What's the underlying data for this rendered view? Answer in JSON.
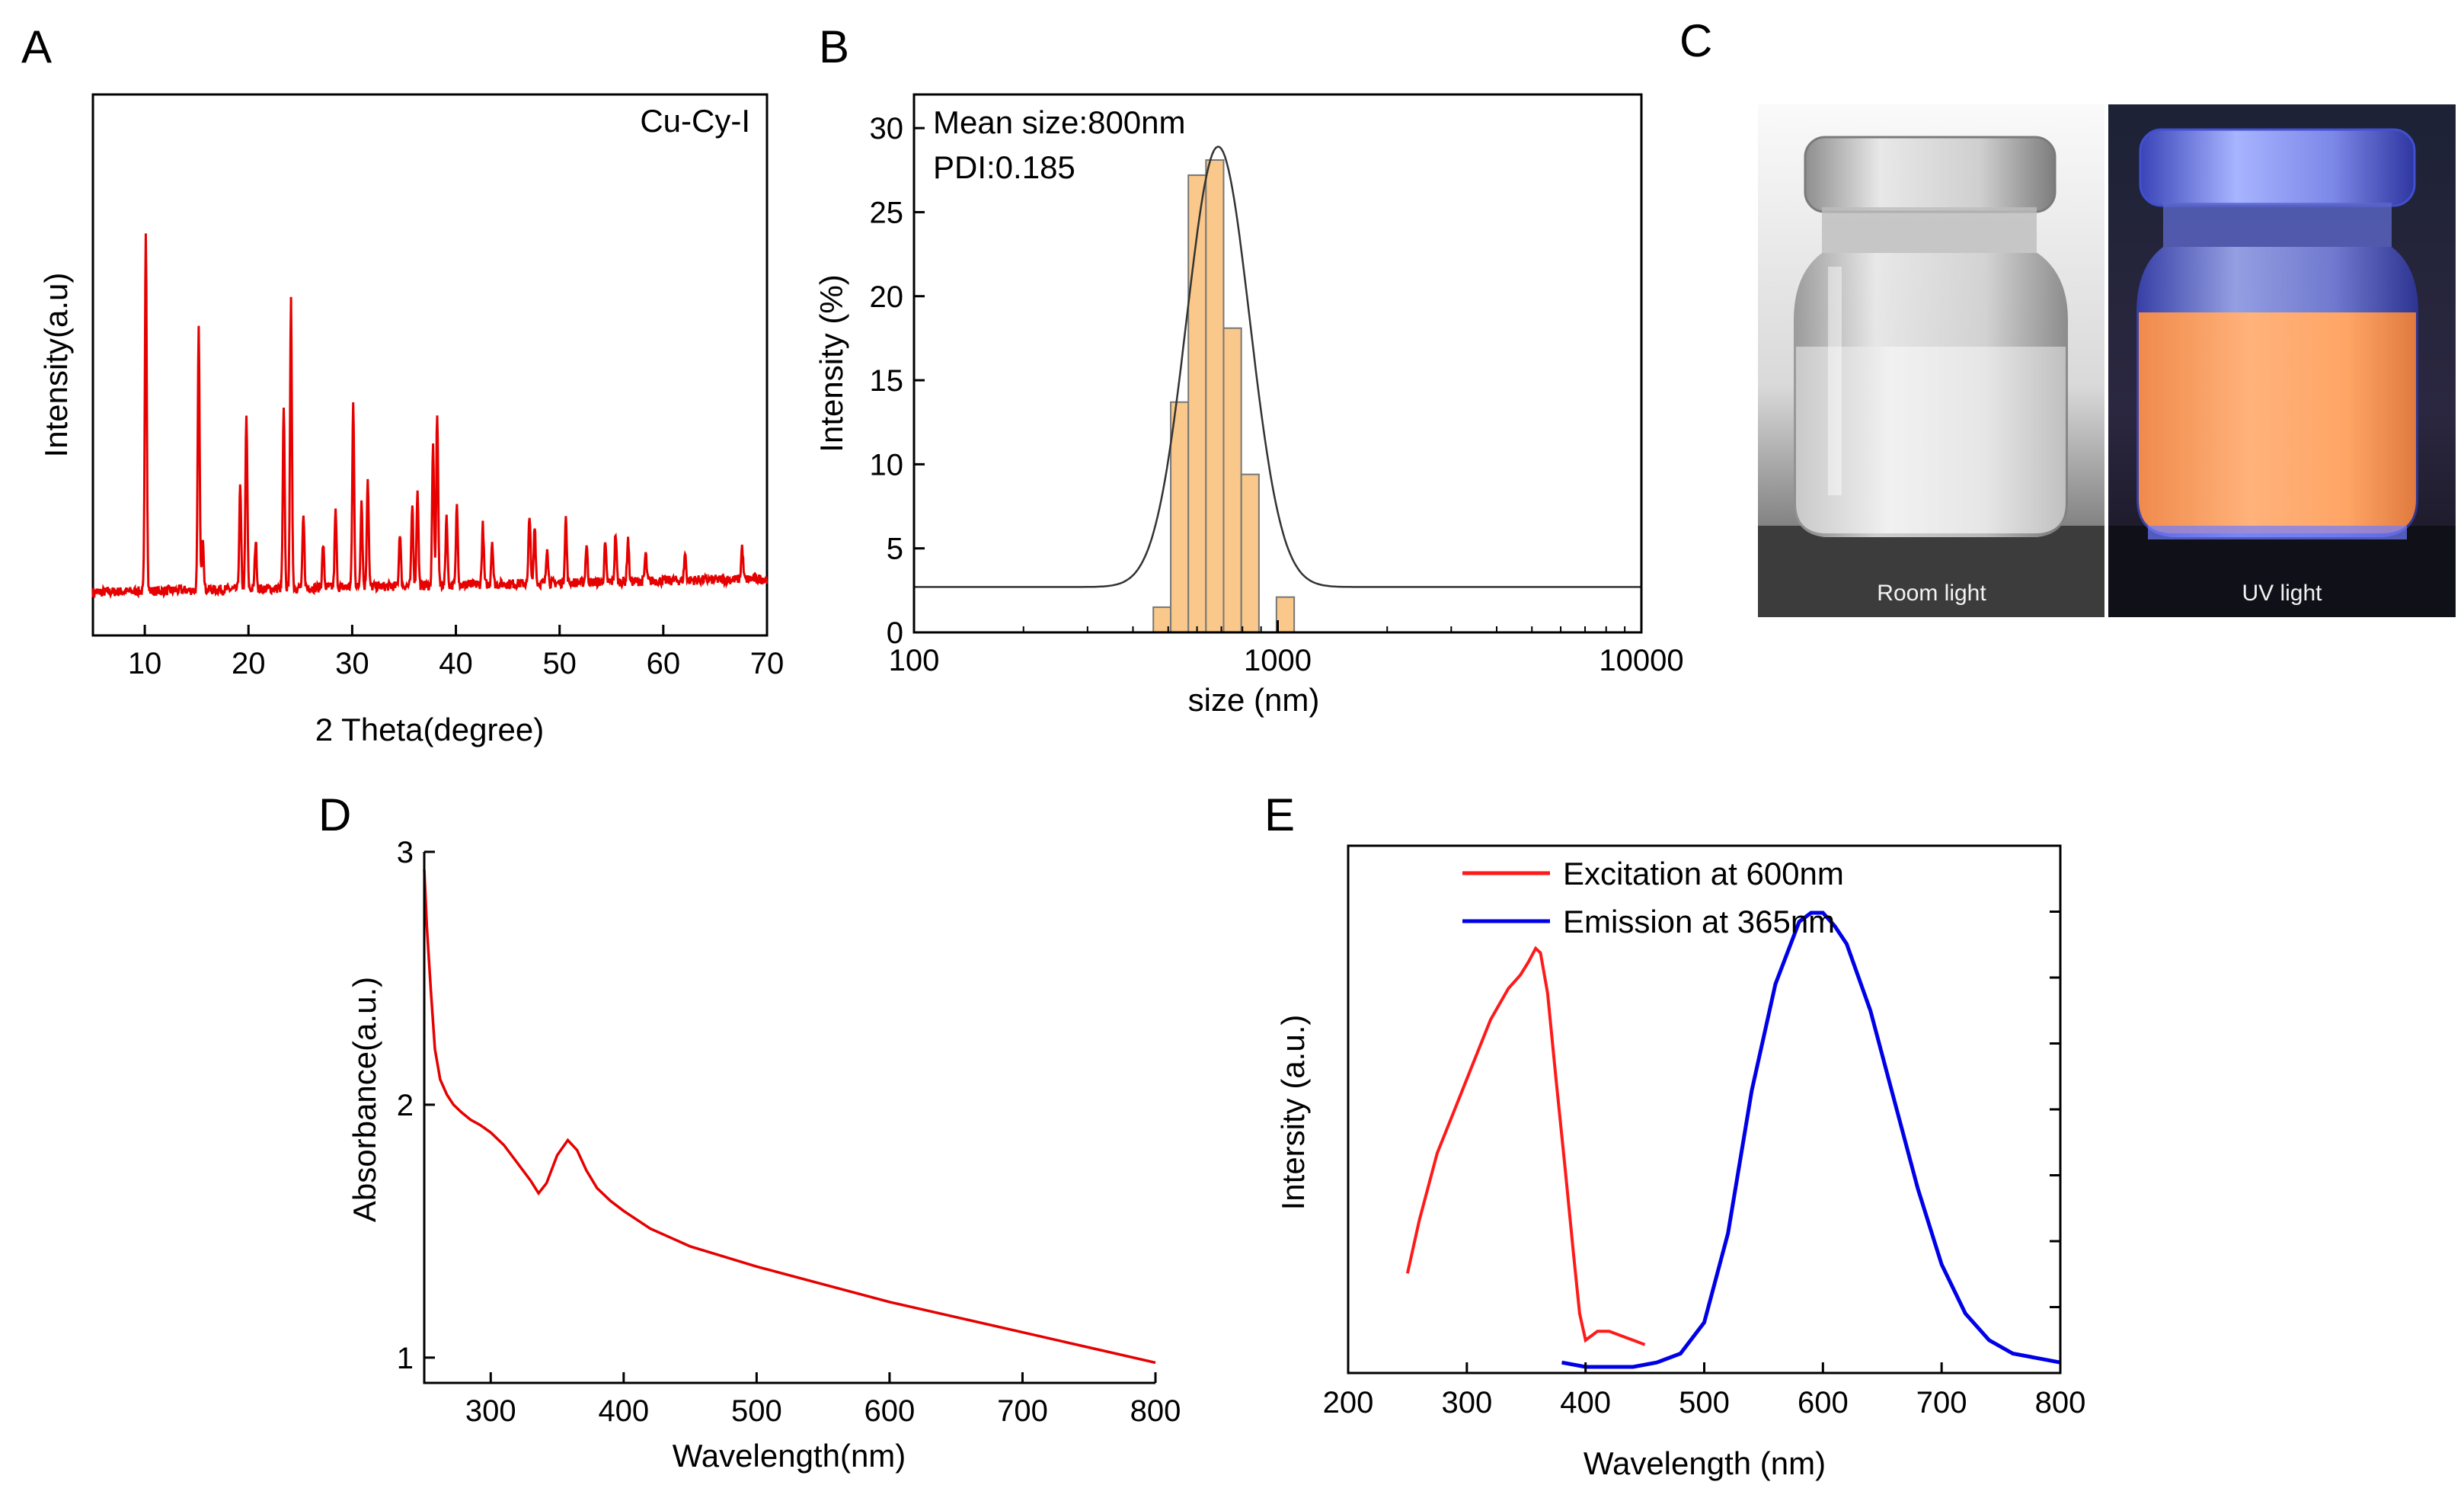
{
  "panel_letters": [
    "A",
    "B",
    "C",
    "D",
    "E"
  ],
  "chart_data": [
    {
      "panel": "A",
      "type": "line",
      "title": "",
      "annotation": "Cu-Cy-I",
      "xlabel": "2 Theta(degree)",
      "ylabel": "Intensity(a.u)",
      "xlim": [
        5,
        70
      ],
      "ylim": [
        0,
        1
      ],
      "x_ticks": [
        10,
        20,
        30,
        40,
        50,
        60,
        70
      ],
      "y_ticks_shown": false,
      "color": "#e60000",
      "baseline": 0.08,
      "peaks": [
        {
          "x": 10.1,
          "y": 0.75
        },
        {
          "x": 15.2,
          "y": 0.56
        },
        {
          "x": 15.6,
          "y": 0.18
        },
        {
          "x": 19.2,
          "y": 0.27
        },
        {
          "x": 19.8,
          "y": 0.4
        },
        {
          "x": 20.7,
          "y": 0.17
        },
        {
          "x": 23.4,
          "y": 0.41
        },
        {
          "x": 24.1,
          "y": 0.61
        },
        {
          "x": 25.3,
          "y": 0.21
        },
        {
          "x": 27.2,
          "y": 0.16
        },
        {
          "x": 28.4,
          "y": 0.22
        },
        {
          "x": 30.1,
          "y": 0.42
        },
        {
          "x": 30.9,
          "y": 0.24
        },
        {
          "x": 31.5,
          "y": 0.28
        },
        {
          "x": 34.6,
          "y": 0.18
        },
        {
          "x": 35.8,
          "y": 0.23
        },
        {
          "x": 36.3,
          "y": 0.26
        },
        {
          "x": 37.8,
          "y": 0.34
        },
        {
          "x": 38.2,
          "y": 0.4
        },
        {
          "x": 39.1,
          "y": 0.21
        },
        {
          "x": 40.1,
          "y": 0.23
        },
        {
          "x": 42.6,
          "y": 0.19
        },
        {
          "x": 43.5,
          "y": 0.16
        },
        {
          "x": 47.1,
          "y": 0.21
        },
        {
          "x": 47.6,
          "y": 0.19
        },
        {
          "x": 48.8,
          "y": 0.15
        },
        {
          "x": 50.6,
          "y": 0.2
        },
        {
          "x": 52.6,
          "y": 0.15
        },
        {
          "x": 54.4,
          "y": 0.15
        },
        {
          "x": 55.4,
          "y": 0.17
        },
        {
          "x": 56.6,
          "y": 0.16
        },
        {
          "x": 58.3,
          "y": 0.13
        },
        {
          "x": 62.1,
          "y": 0.13
        },
        {
          "x": 67.6,
          "y": 0.14
        }
      ]
    },
    {
      "panel": "B",
      "type": "bar",
      "title": "",
      "annotations": [
        "Mean size:800nm",
        "PDI:0.185"
      ],
      "xlabel": "size (nm)",
      "ylabel": "Intensity (%)",
      "xscale": "log",
      "xlim": [
        100,
        10000
      ],
      "ylim": [
        0,
        32
      ],
      "x_ticks": [
        100,
        1000,
        10000
      ],
      "y_ticks": [
        0,
        5,
        10,
        15,
        20,
        25,
        30
      ],
      "bar_color": "#f9c88a",
      "bar_edge": "#777777",
      "bins": [
        {
          "x0": 455,
          "x1": 508,
          "value": 1.5
        },
        {
          "x0": 508,
          "x1": 568,
          "value": 13.7
        },
        {
          "x0": 568,
          "x1": 635,
          "value": 27.2
        },
        {
          "x0": 635,
          "x1": 710,
          "value": 28.1
        },
        {
          "x0": 710,
          "x1": 794,
          "value": 18.1
        },
        {
          "x0": 794,
          "x1": 888,
          "value": 9.4
        },
        {
          "x0": 888,
          "x1": 992,
          "value": 0.0
        },
        {
          "x0": 992,
          "x1": 1110,
          "value": 2.1
        }
      ],
      "fit": {
        "peak_size": 686,
        "amplitude": 26.2,
        "offset": 2.7,
        "sigma_log10": 0.087
      }
    },
    {
      "panel": "C",
      "type": "image",
      "labels": [
        "Room light",
        "UV  light"
      ]
    },
    {
      "panel": "D",
      "type": "line",
      "title": "",
      "xlabel": "Wavelength(nm)",
      "ylabel": "Absorbance(a.u.)",
      "xlim": [
        250,
        800
      ],
      "ylim": [
        0.9,
        3.0
      ],
      "x_ticks": [
        300,
        400,
        500,
        600,
        700,
        800
      ],
      "y_ticks": [
        1,
        2,
        3
      ],
      "color": "#e60000",
      "x": [
        250,
        252,
        255,
        258,
        262,
        267,
        272,
        278,
        285,
        292,
        300,
        310,
        320,
        330,
        336,
        342,
        350,
        358,
        365,
        372,
        380,
        390,
        400,
        420,
        450,
        500,
        550,
        600,
        650,
        700,
        750,
        800
      ],
      "y": [
        2.93,
        2.7,
        2.45,
        2.22,
        2.1,
        2.04,
        2.0,
        1.97,
        1.94,
        1.92,
        1.89,
        1.84,
        1.77,
        1.7,
        1.65,
        1.69,
        1.8,
        1.86,
        1.82,
        1.74,
        1.67,
        1.62,
        1.58,
        1.51,
        1.44,
        1.36,
        1.29,
        1.22,
        1.16,
        1.1,
        1.04,
        0.98
      ]
    },
    {
      "panel": "E",
      "type": "line",
      "title": "",
      "xlabel": "Wavelength (nm)",
      "ylabel": "Intersity (a.u.)",
      "xlim": [
        200,
        800
      ],
      "ylim": [
        0,
        1
      ],
      "x_ticks": [
        200,
        300,
        400,
        500,
        600,
        700,
        800
      ],
      "y_ticks_shown": false,
      "legend_position": "top-left",
      "series": [
        {
          "name": "Excitation at 600nm",
          "color": "#ff1a1a",
          "x": [
            250,
            260,
            275,
            290,
            305,
            320,
            335,
            345,
            352,
            358,
            362,
            368,
            375,
            383,
            390,
            395,
            400,
            405,
            410,
            420,
            430,
            440,
            450
          ],
          "y": [
            0.21,
            0.33,
            0.48,
            0.58,
            0.68,
            0.78,
            0.85,
            0.88,
            0.91,
            0.94,
            0.93,
            0.84,
            0.65,
            0.44,
            0.25,
            0.12,
            0.06,
            0.07,
            0.08,
            0.08,
            0.07,
            0.06,
            0.05
          ]
        },
        {
          "name": "Emission at 365nm",
          "color": "#0000e6",
          "x": [
            380,
            400,
            420,
            440,
            460,
            480,
            500,
            520,
            540,
            560,
            580,
            590,
            600,
            610,
            620,
            640,
            660,
            680,
            700,
            720,
            740,
            760,
            780,
            800
          ],
          "y": [
            0.01,
            0.0,
            0.0,
            0.0,
            0.01,
            0.03,
            0.1,
            0.3,
            0.62,
            0.86,
            1.0,
            1.02,
            1.02,
            0.99,
            0.95,
            0.8,
            0.6,
            0.4,
            0.23,
            0.12,
            0.06,
            0.03,
            0.02,
            0.01
          ]
        }
      ]
    }
  ]
}
